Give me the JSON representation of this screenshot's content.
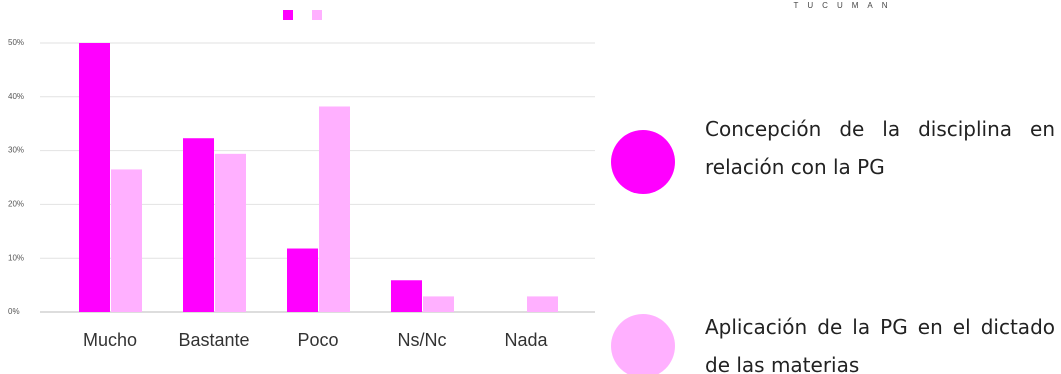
{
  "logo_text": "TUCUMAN",
  "chart_data": {
    "type": "bar",
    "categories": [
      "Mucho",
      "Bastante",
      "Poco",
      "Ns/Nc",
      "Nada"
    ],
    "series": [
      {
        "name": "Concepción de la disciplina en relación con la PG",
        "color": "#ff00ff",
        "values": [
          50,
          32.3,
          11.8,
          5.9,
          0
        ]
      },
      {
        "name": "Aplicación de la PG en el dictado de las materias",
        "color": "#ffb0ff",
        "values": [
          26.5,
          29.4,
          38.2,
          2.9,
          2.9
        ]
      }
    ],
    "ylim": [
      0,
      50
    ],
    "yticks": [
      {
        "value": 0,
        "label": "0%"
      },
      {
        "value": 10,
        "label": "10%"
      },
      {
        "value": 20,
        "label": "20%"
      },
      {
        "value": 30,
        "label": "30%"
      },
      {
        "value": 40,
        "label": "40%"
      },
      {
        "value": 50,
        "label": "50%"
      }
    ],
    "grid": true
  }
}
